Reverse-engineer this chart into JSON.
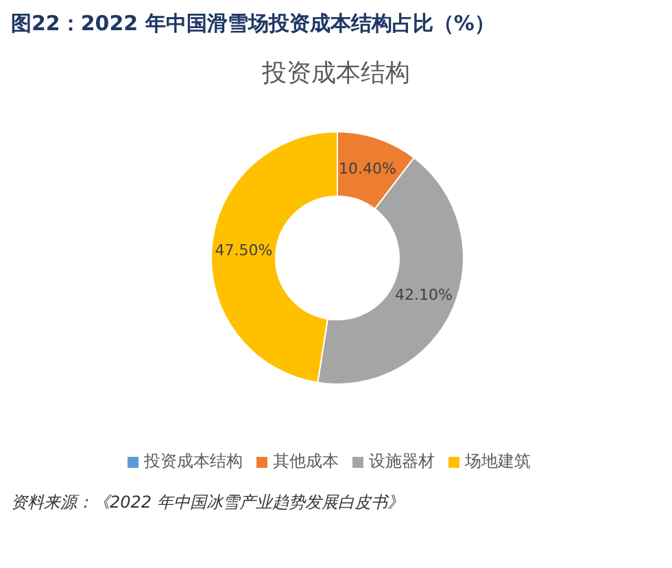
{
  "chart_data": {
    "type": "donut",
    "title": "图22：2022 年中国滑雪场投资成本结构占比（%）",
    "subtitle": "投资成本结构",
    "categories": [
      "投资成本结构",
      "其他成本",
      "设施器材",
      "场地建筑"
    ],
    "values": [
      0,
      10.4,
      42.1,
      47.5
    ],
    "colors": [
      "#5b9bd5",
      "#ed7d31",
      "#a5a5a5",
      "#ffc000"
    ],
    "value_labels": [
      null,
      "10.40%",
      "42.10%",
      "47.50%"
    ],
    "legend": "bottom",
    "annotations": [
      "资料来源：《2022 年中国冰雪产业趋势发展白皮书》"
    ]
  }
}
